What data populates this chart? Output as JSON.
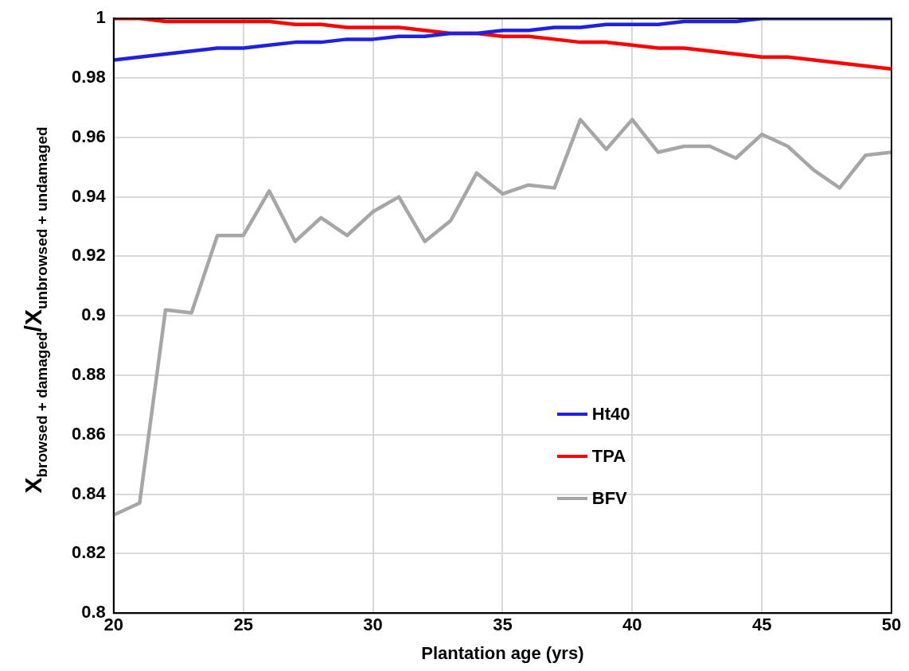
{
  "chart_data": {
    "type": "line",
    "xlabel": "Plantation age (yrs)",
    "ylabel": "X$_{browsed + damaged}$/X$_{unbrowsed + undamaged}$",
    "x": [
      20,
      21,
      22,
      23,
      24,
      25,
      26,
      27,
      28,
      29,
      30,
      31,
      32,
      33,
      34,
      35,
      36,
      37,
      38,
      39,
      40,
      41,
      42,
      43,
      44,
      45,
      46,
      47,
      48,
      49,
      50
    ],
    "series": [
      {
        "name": "Ht40",
        "color": "#2020e0",
        "values": [
          0.986,
          0.987,
          0.988,
          0.989,
          0.99,
          0.99,
          0.991,
          0.992,
          0.992,
          0.993,
          0.993,
          0.994,
          0.994,
          0.995,
          0.995,
          0.996,
          0.996,
          0.997,
          0.997,
          0.998,
          0.998,
          0.998,
          0.999,
          0.999,
          0.999,
          1,
          1,
          1,
          1,
          1,
          1
        ]
      },
      {
        "name": "TPA",
        "color": "#ff0000",
        "values": [
          1,
          1,
          0.999,
          0.999,
          0.999,
          0.999,
          0.999,
          0.998,
          0.998,
          0.997,
          0.997,
          0.997,
          0.996,
          0.995,
          0.995,
          0.994,
          0.994,
          0.993,
          0.992,
          0.992,
          0.991,
          0.99,
          0.99,
          0.989,
          0.988,
          0.987,
          0.987,
          0.986,
          0.985,
          0.984,
          0.983
        ]
      },
      {
        "name": "BFV",
        "color": "#a6a6a6",
        "values": [
          0.833,
          0.837,
          0.902,
          0.901,
          0.927,
          0.927,
          0.942,
          0.925,
          0.933,
          0.927,
          0.935,
          0.94,
          0.925,
          0.932,
          0.948,
          0.941,
          0.944,
          0.943,
          0.966,
          0.956,
          0.966,
          0.955,
          0.957,
          0.957,
          0.953,
          0.961,
          0.957,
          0.949,
          0.943,
          0.954,
          0.955
        ]
      }
    ],
    "xlim": [
      20,
      50
    ],
    "xticks": [
      20,
      25,
      30,
      35,
      40,
      45,
      50
    ],
    "ylim": [
      0.8,
      1
    ],
    "yticks": [
      0.8,
      0.82,
      0.84,
      0.86,
      0.88,
      0.9,
      0.92,
      0.94,
      0.96,
      0.98,
      1
    ],
    "grid": true,
    "legend": "right",
    "marker": "none",
    "line_style": "solid"
  }
}
